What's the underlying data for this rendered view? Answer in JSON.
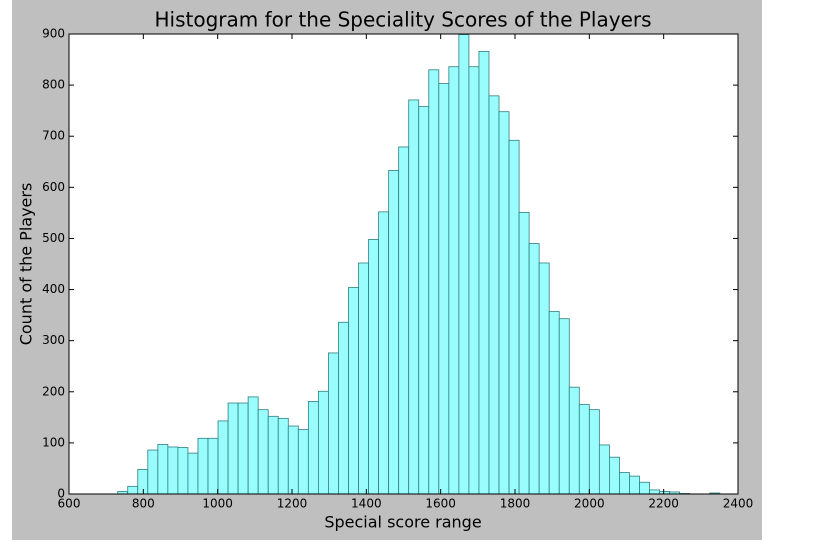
{
  "chart_data": {
    "type": "histogram",
    "title": "Histogram for the Speciality Scores of the Players",
    "x_label": "Special score range",
    "y_label": "Count of the Players",
    "bins": [
      731,
      758,
      785,
      812,
      839,
      866,
      893,
      920,
      947,
      974,
      1001,
      1028,
      1055,
      1082,
      1109,
      1136,
      1163,
      1190,
      1217,
      1244,
      1271,
      1298,
      1325,
      1352,
      1379,
      1406,
      1433,
      1460,
      1487,
      1514,
      1541,
      1568,
      1595,
      1622,
      1649,
      1676,
      1703,
      1730,
      1757,
      1784,
      1811,
      1838,
      1865,
      1892,
      1919,
      1946,
      1973,
      2000,
      2027,
      2054,
      2081,
      2108,
      2135,
      2162,
      2189,
      2216,
      2243,
      2270,
      2297,
      2324,
      2351
    ],
    "values": [
      5,
      15,
      48,
      86,
      97,
      92,
      91,
      80,
      109,
      109,
      143,
      178,
      178,
      190,
      165,
      152,
      148,
      133,
      126,
      181,
      201,
      276,
      336,
      404,
      452,
      498,
      552,
      633,
      679,
      771,
      758,
      830,
      803,
      836,
      899,
      836,
      866,
      779,
      748,
      692,
      551,
      490,
      452,
      357,
      343,
      209,
      175,
      165,
      96,
      72,
      42,
      35,
      23,
      8,
      5,
      4,
      1,
      0,
      0,
      2
    ],
    "color": "#99fdfd",
    "edgecolor": "#2f7f7f",
    "xlim": [
      600,
      2400
    ],
    "xticks": [
      600,
      800,
      1000,
      1200,
      1400,
      1600,
      1800,
      2000,
      2200,
      2400
    ],
    "ylim": [
      0,
      900
    ],
    "yticks": [
      0,
      100,
      200,
      300,
      400,
      500,
      600,
      700,
      800,
      900
    ]
  }
}
